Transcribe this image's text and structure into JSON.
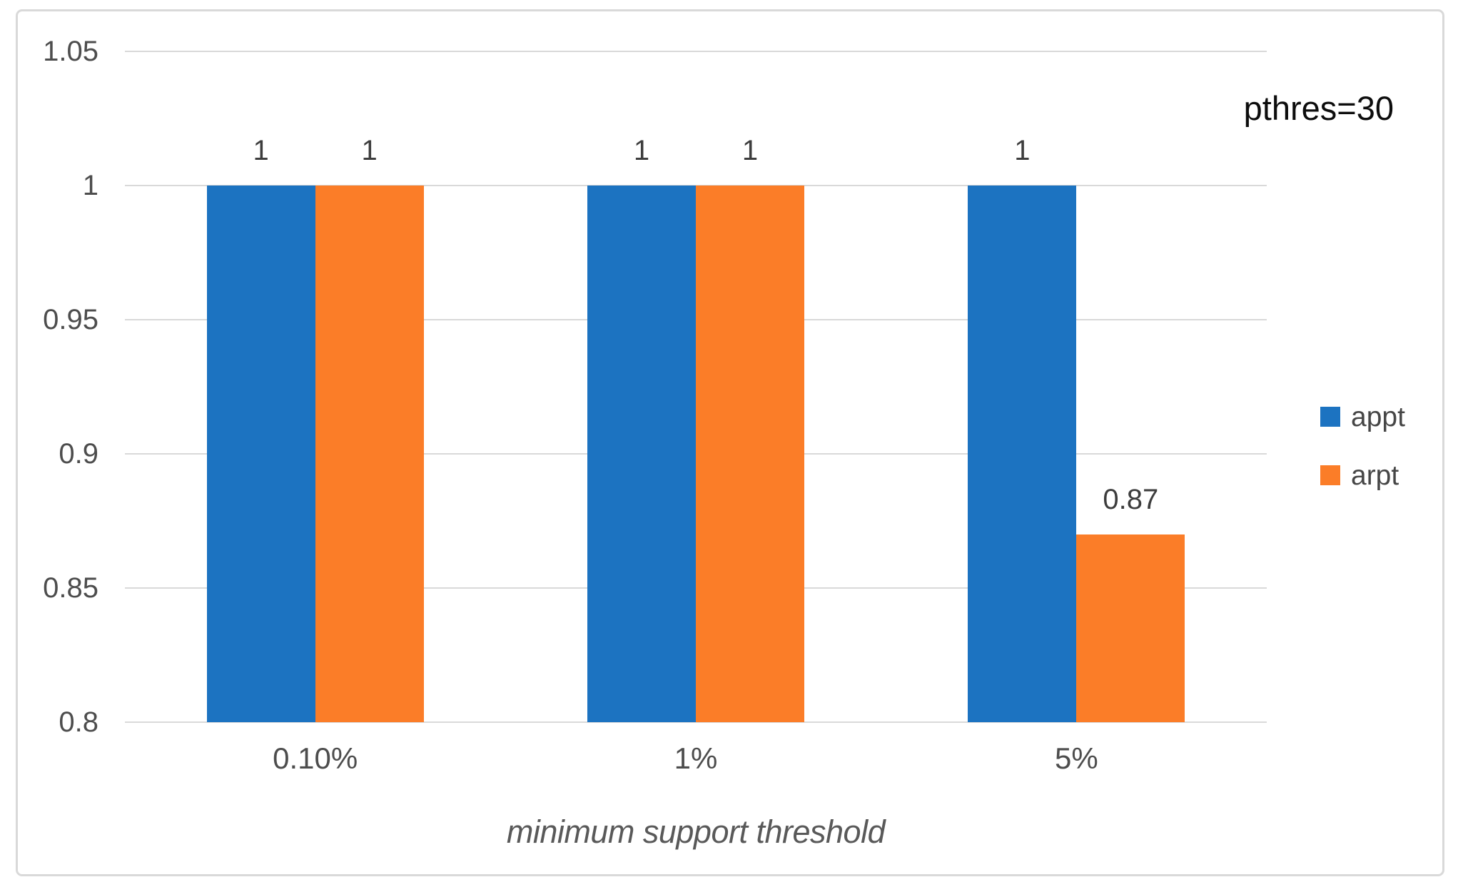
{
  "chart_data": {
    "type": "bar",
    "title": "",
    "xlabel": "minimum support threshold",
    "ylabel": "",
    "annotation": "pthres=30",
    "categories": [
      "0.10%",
      "1%",
      "5%"
    ],
    "series": [
      {
        "name": "appt",
        "color": "#1c73c1",
        "values": [
          1,
          1,
          1
        ],
        "labels": [
          "1",
          "1",
          "1"
        ]
      },
      {
        "name": "arpt",
        "color": "#fb7d28",
        "values": [
          1,
          1,
          0.87
        ],
        "labels": [
          "1",
          "1",
          "0.87"
        ]
      }
    ],
    "ylim": [
      0.8,
      1.05
    ],
    "yticks": [
      {
        "value": 1.05,
        "label": "1.05"
      },
      {
        "value": 1.0,
        "label": "1"
      },
      {
        "value": 0.95,
        "label": "0.95"
      },
      {
        "value": 0.9,
        "label": "0.9"
      },
      {
        "value": 0.85,
        "label": "0.85"
      },
      {
        "value": 0.8,
        "label": "0.8"
      }
    ],
    "grid": true,
    "legend_position": "right",
    "colors": {
      "gridline": "#d9d9d9",
      "frame_border": "#d9d9d9",
      "tick_text": "#4d4d4d",
      "data_label_text": "#3d3d3d",
      "axis_title_text": "#595959",
      "annotation_text": "#0d0d0d",
      "background": "#ffffff"
    }
  }
}
